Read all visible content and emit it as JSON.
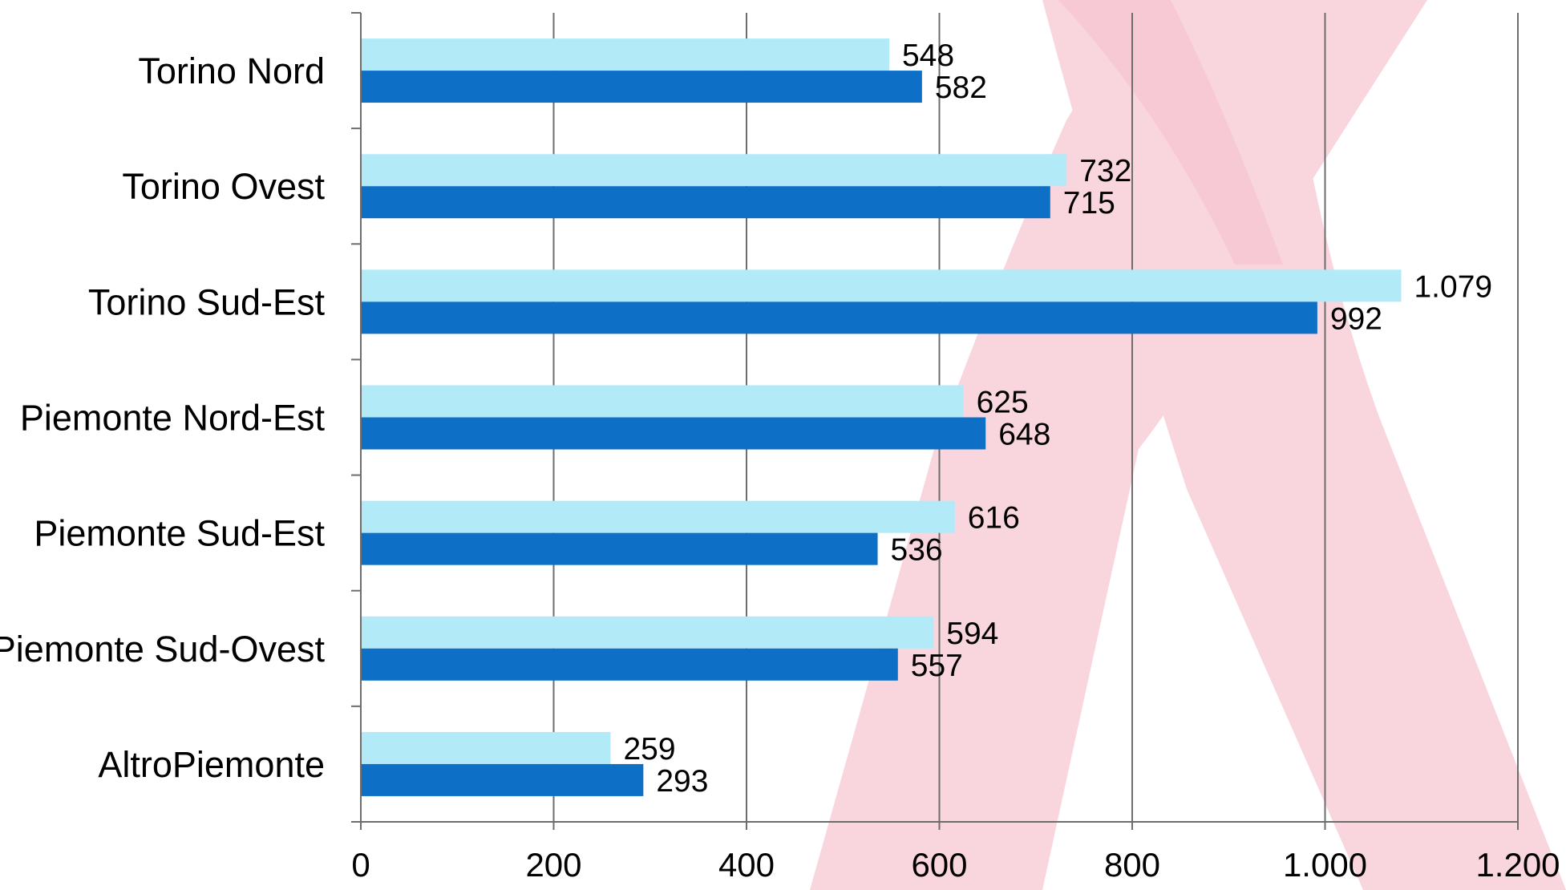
{
  "colors": {
    "background_ribbon": "#f9d5de",
    "series_light": "#b3eaf8",
    "series_dark": "#0e6fc6",
    "gridline": "#6d6d6d",
    "axis": "#6d6d6d"
  },
  "chart_data": {
    "type": "bar",
    "orientation": "horizontal",
    "title": "",
    "xlabel": "",
    "ylabel": "",
    "categories": [
      "Torino Nord",
      "Torino Ovest",
      "Torino Sud-Est",
      "Piemonte Nord-Est",
      "Piemonte Sud-Est",
      "Piemonte Sud-Ovest",
      "AltroPiemonte"
    ],
    "series": [
      {
        "color": "#b3eaf8",
        "values": [
          548,
          732,
          1079,
          625,
          616,
          594,
          259
        ],
        "labels": [
          "548",
          "732",
          "1.079",
          "625",
          "616",
          "594",
          "259"
        ]
      },
      {
        "color": "#0e6fc6",
        "values": [
          582,
          715,
          992,
          648,
          536,
          557,
          293
        ],
        "labels": [
          "582",
          "715",
          "992",
          "648",
          "536",
          "557",
          "293"
        ]
      }
    ],
    "xlim": [
      0,
      1200
    ],
    "xticks": [
      0,
      200,
      400,
      600,
      800,
      1000,
      1200
    ],
    "xtick_labels": [
      "0",
      "200",
      "400",
      "600",
      "800",
      "1.000",
      "1.200"
    ],
    "grid": true,
    "legend": "none"
  }
}
